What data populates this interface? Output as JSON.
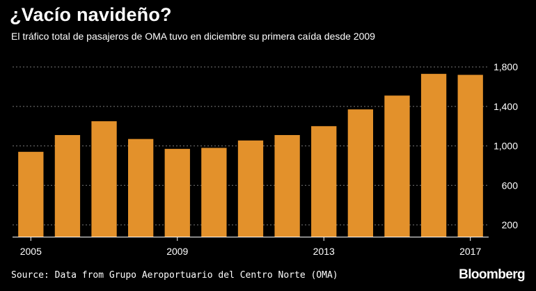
{
  "header": {
    "title": "¿Vacío navideño?",
    "subtitle": "El tráfico total de pasajeros de OMA tuvo en diciembre su primera caída desde 2009"
  },
  "footer": {
    "source": "Source: Data from Grupo Aeroportuario del Centro Norte (OMA)",
    "brand": "Bloomberg"
  },
  "colors": {
    "background": "#000000",
    "bar": "#E3912B",
    "grid": "#7a7a7a",
    "text": "#ffffff"
  },
  "chart_data": {
    "type": "bar",
    "title": "¿Vacío navideño?",
    "subtitle": "El tráfico total de pasajeros de OMA tuvo en diciembre su primera caída desde 2009",
    "categories": [
      "2005",
      "2006",
      "2007",
      "2008",
      "2009",
      "2010",
      "2011",
      "2012",
      "2013",
      "2014",
      "2015",
      "2016",
      "2017"
    ],
    "values": [
      940,
      1110,
      1250,
      1070,
      970,
      980,
      1055,
      1110,
      1200,
      1370,
      1510,
      1730,
      1720
    ],
    "xtick_labels": [
      "2005",
      "2009",
      "2013",
      "2017"
    ],
    "ytick_labels": [
      "200",
      "600",
      "1,000",
      "1,400",
      "1,800"
    ],
    "yticks": [
      200,
      600,
      1000,
      1400,
      1800
    ],
    "ylim": [
      80,
      1900
    ],
    "xlabel": "",
    "ylabel": "",
    "grid": true,
    "axis_side": "right"
  }
}
